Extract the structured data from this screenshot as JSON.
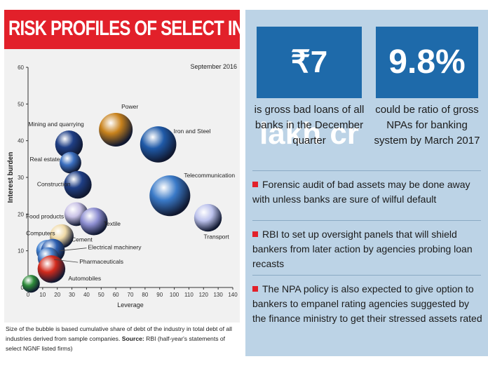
{
  "title": "RISK PROFILES OF SELECT INDUSTRIES",
  "stats": [
    {
      "value": "₹7 lakh cr",
      "text": "is gross bad loans of all banks in the December quarter"
    },
    {
      "value": "9.8%",
      "text": "could be ratio of gross NPAs for banking system by March 2017"
    }
  ],
  "bullets": [
    "Forensic audit of bad assets may be done away with unless banks are sure of wilful default",
    "RBI to set up oversight panels that will shield bankers from later action by agencies probing loan recasts",
    "The NPA policy is also expected to give option to bankers to empanel rating agencies suggested by the finance ministry to get their stressed assets rated"
  ],
  "footnote": {
    "text": "Size of the bubble is based cumulative share of debt of the industry in total debt of all industries derived from sample companies.",
    "source_label": "Source:",
    "source_text": "RBI (half-year's statements of select NGNF listed firms)"
  },
  "chart_data": {
    "type": "scatter",
    "subtitle": "September 2016",
    "xlabel": "Leverage",
    "ylabel": "Interest burden",
    "xlim": [
      0,
      140
    ],
    "ylim": [
      0,
      60
    ],
    "xticks": [
      0,
      10,
      20,
      30,
      40,
      50,
      60,
      70,
      80,
      90,
      100,
      110,
      120,
      130,
      140
    ],
    "yticks": [
      0,
      10,
      20,
      30,
      40,
      50,
      60
    ],
    "points": [
      {
        "label": "Mining and quarrying",
        "x": 28,
        "y": 39,
        "size": 3,
        "color": "#1f3f86"
      },
      {
        "label": "Power",
        "x": 60,
        "y": 43,
        "size": 5,
        "color": "#c8821c"
      },
      {
        "label": "Iron and Steel",
        "x": 89,
        "y": 39,
        "size": 6,
        "color": "#1f5aa8"
      },
      {
        "label": "Real estate",
        "x": 29,
        "y": 34,
        "size": 1.5,
        "color": "#3b6fbf"
      },
      {
        "label": "Construction",
        "x": 34,
        "y": 28,
        "size": 3,
        "color": "#1f3f86"
      },
      {
        "label": "Telecommunication",
        "x": 97,
        "y": 25,
        "size": 8,
        "color": "#3a7ac8"
      },
      {
        "label": "Food products",
        "x": 33,
        "y": 20,
        "size": 2,
        "color": "#c9c2e6"
      },
      {
        "label": "Textile",
        "x": 45,
        "y": 18,
        "size": 3,
        "color": "#8e8fd2"
      },
      {
        "label": "Transport",
        "x": 123,
        "y": 19,
        "size": 3,
        "color": "#bcc2ec"
      },
      {
        "label": "Computers",
        "x": 13,
        "y": 10,
        "size": 1.5,
        "color": "#3f7fcf"
      },
      {
        "label": "Cement",
        "x": 23,
        "y": 14,
        "size": 2,
        "color": "#efd9a6"
      },
      {
        "label": "Electrical machinery",
        "x": 17,
        "y": 10,
        "size": 2,
        "color": "#2d5fb0"
      },
      {
        "label": "Pharmaceuticals",
        "x": 14,
        "y": 8,
        "size": 1.5,
        "color": "#4a7fc8"
      },
      {
        "label": "Automobiles",
        "x": 16,
        "y": 5,
        "size": 3,
        "color": "#d22a1c"
      },
      {
        "label": "",
        "x": 2,
        "y": 1,
        "size": 0.8,
        "color": "#2e8b3a"
      }
    ]
  }
}
